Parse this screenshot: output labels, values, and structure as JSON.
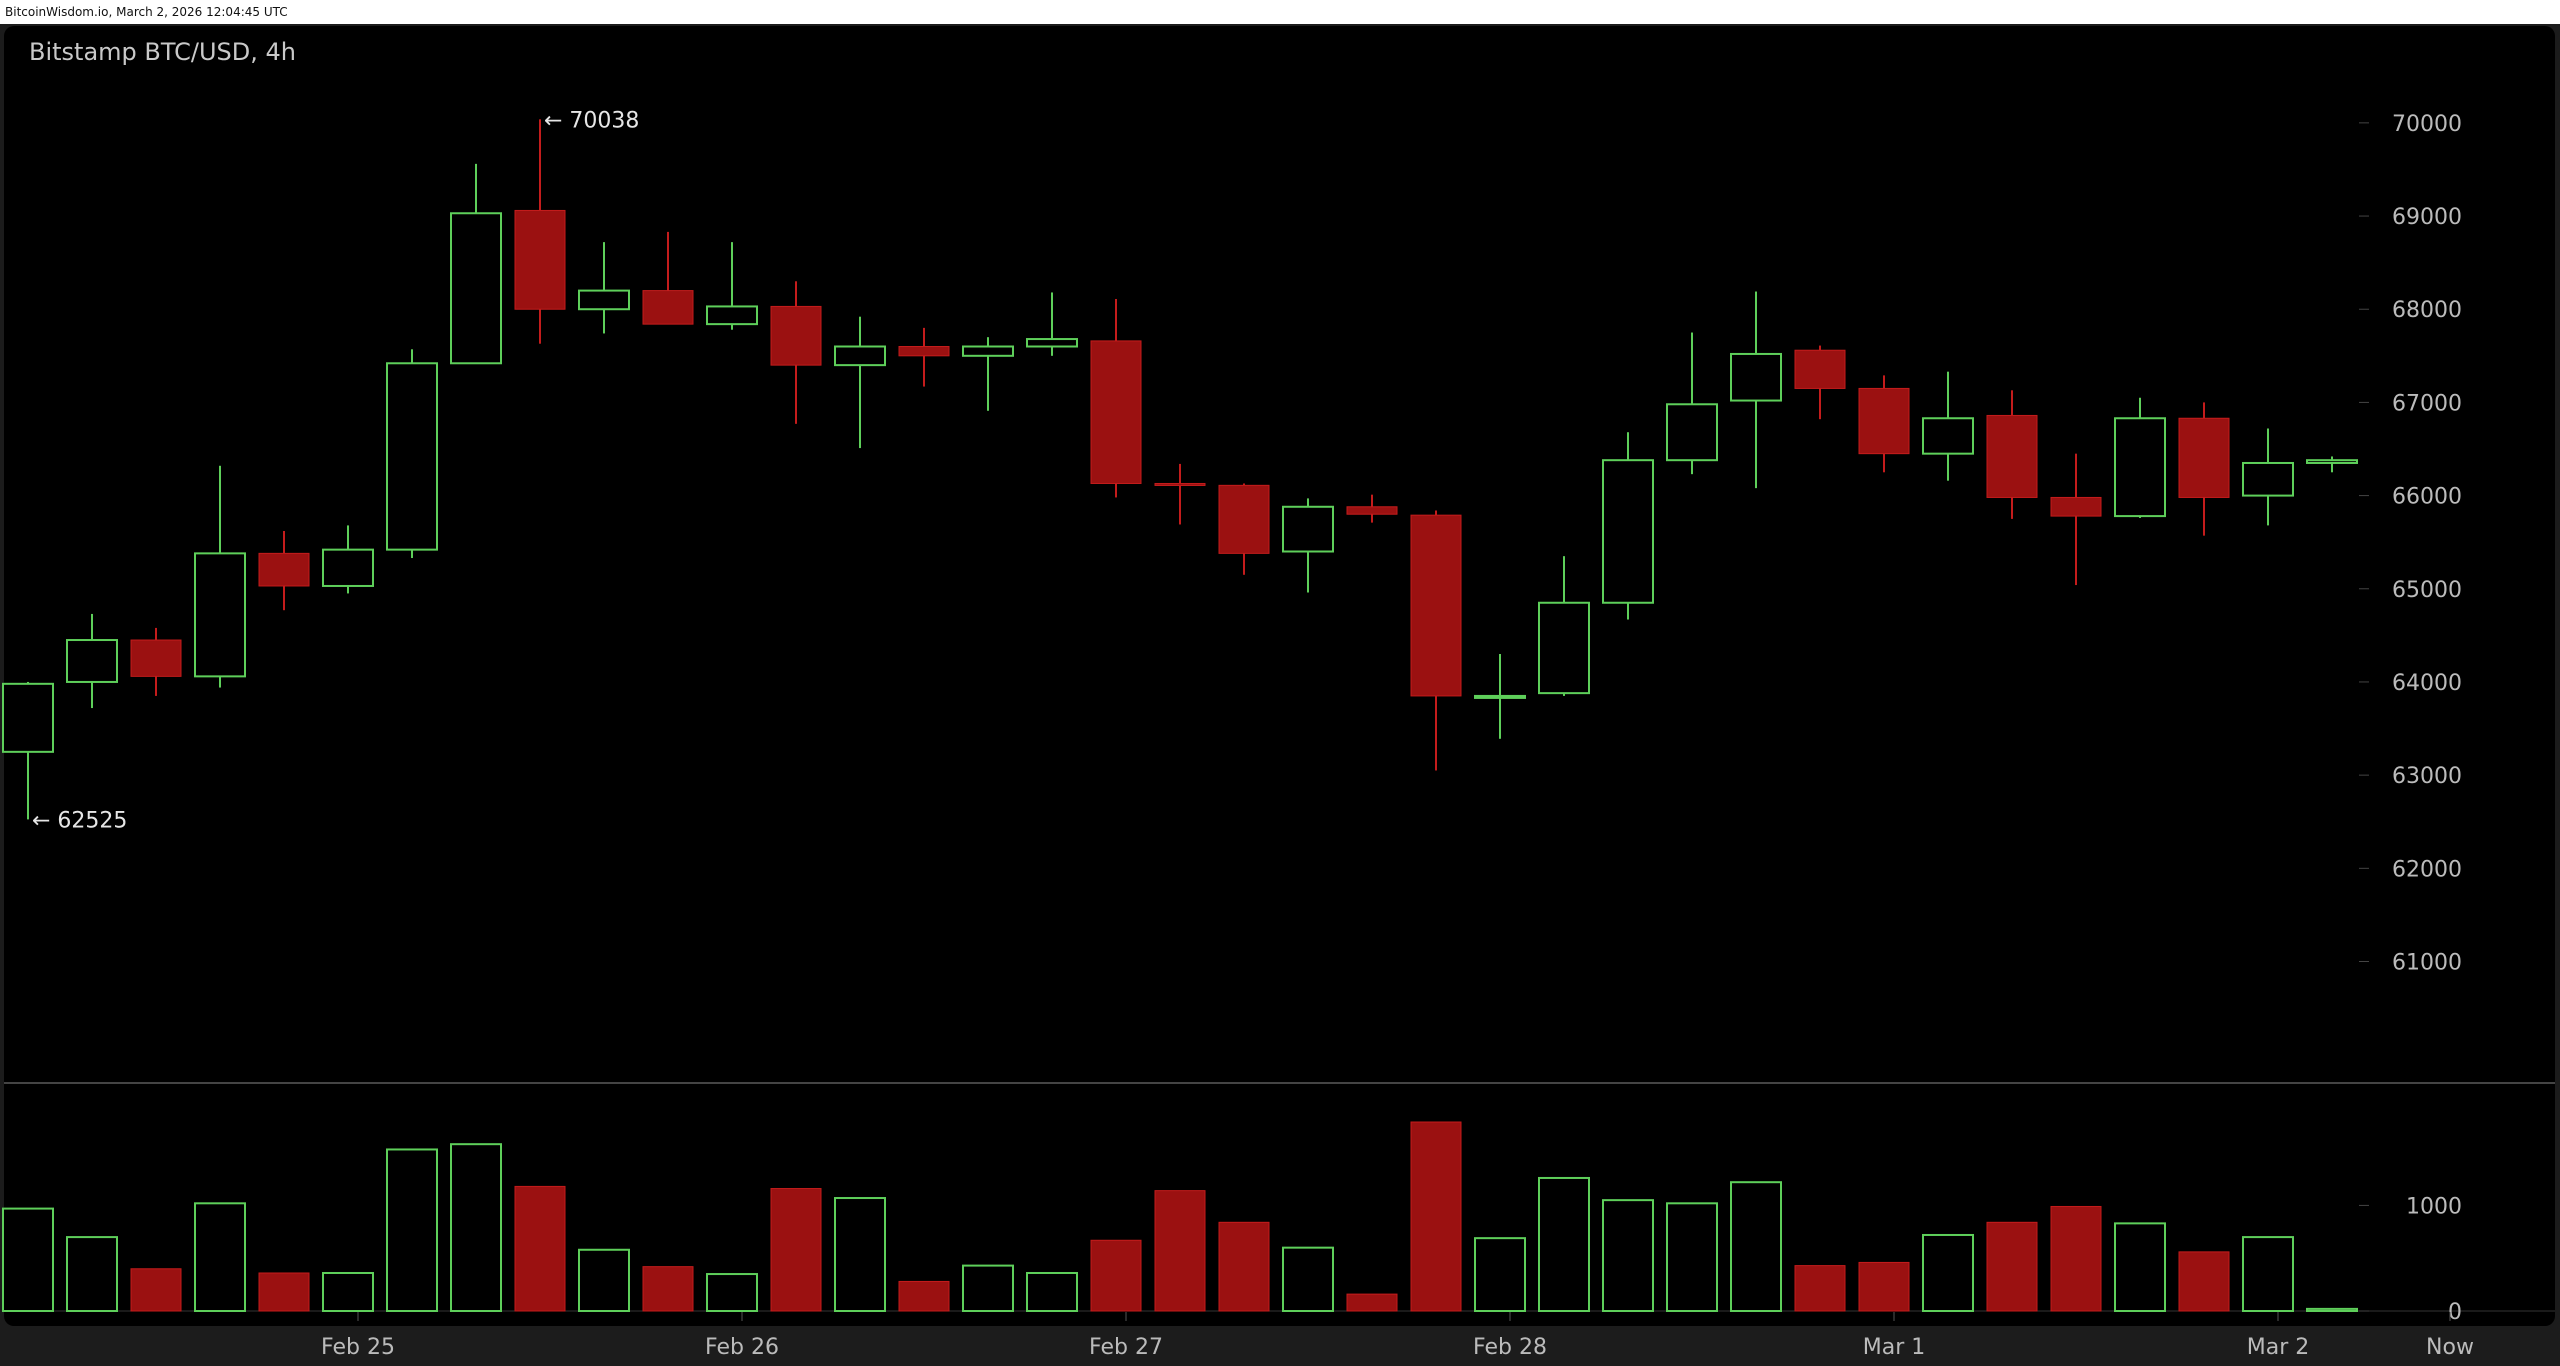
{
  "header": {
    "text": "BitcoinWisdom.io, March 2, 2026 12:04:45 UTC"
  },
  "chart": {
    "title": "Bitstamp BTC/USD, 4h"
  },
  "colors": {
    "up": "#5ecf5a",
    "down": "#9b1111",
    "down_outline": "#c41c1c",
    "background": "#000000",
    "frame": "#1c1c1c",
    "text": "#bbbbbb"
  },
  "chart_data": {
    "type": "candlestick",
    "title": "Bitstamp BTC/USD, 4h",
    "price_ylim": [
      59900,
      70900
    ],
    "volume_ylim": [
      0,
      2150
    ],
    "price_ticks": [
      61000,
      62000,
      63000,
      64000,
      65000,
      66000,
      67000,
      68000,
      69000,
      70000
    ],
    "volume_ticks": [
      0,
      1000
    ],
    "x_ticks": [
      {
        "label": "Feb 25",
        "at": 5
      },
      {
        "label": "Feb 26",
        "at": 11
      },
      {
        "label": "Feb 27",
        "at": 17
      },
      {
        "label": "Feb 28",
        "at": 23
      },
      {
        "label": "Mar 1",
        "at": 29
      },
      {
        "label": "Mar 2",
        "at": 35
      },
      {
        "label": "Now",
        "at": 38
      }
    ],
    "annotations": [
      {
        "text": "← 70038",
        "candle": 8,
        "price": 70038
      },
      {
        "text": "← 62525",
        "candle": 0,
        "price": 62525
      }
    ],
    "candles": [
      {
        "open": 63250,
        "high": 64000,
        "low": 62525,
        "close": 63980,
        "volume": 970
      },
      {
        "open": 64000,
        "high": 64730,
        "low": 63720,
        "close": 64450,
        "volume": 700
      },
      {
        "open": 64450,
        "high": 64580,
        "low": 63850,
        "close": 64060,
        "volume": 400
      },
      {
        "open": 64060,
        "high": 66320,
        "low": 63940,
        "close": 65380,
        "volume": 1020
      },
      {
        "open": 65380,
        "high": 65620,
        "low": 64770,
        "close": 65030,
        "volume": 360
      },
      {
        "open": 65030,
        "high": 65680,
        "low": 64950,
        "close": 65420,
        "volume": 360
      },
      {
        "open": 65420,
        "high": 67570,
        "low": 65330,
        "close": 67420,
        "volume": 1530
      },
      {
        "open": 67420,
        "high": 69560,
        "low": 67420,
        "close": 69030,
        "volume": 1580
      },
      {
        "open": 69060,
        "high": 70038,
        "low": 67630,
        "close": 68000,
        "volume": 1180
      },
      {
        "open": 68000,
        "high": 68720,
        "low": 67740,
        "close": 68200,
        "volume": 580
      },
      {
        "open": 68200,
        "high": 68830,
        "low": 67840,
        "close": 67840,
        "volume": 420
      },
      {
        "open": 67840,
        "high": 68720,
        "low": 67780,
        "close": 68030,
        "volume": 350
      },
      {
        "open": 68030,
        "high": 68300,
        "low": 66770,
        "close": 67400,
        "volume": 1160
      },
      {
        "open": 67400,
        "high": 67920,
        "low": 66510,
        "close": 67600,
        "volume": 1070
      },
      {
        "open": 67600,
        "high": 67800,
        "low": 67170,
        "close": 67500,
        "volume": 280
      },
      {
        "open": 67500,
        "high": 67700,
        "low": 66910,
        "close": 67600,
        "volume": 430
      },
      {
        "open": 67600,
        "high": 68180,
        "low": 67500,
        "close": 67680,
        "volume": 360
      },
      {
        "open": 67660,
        "high": 68110,
        "low": 65980,
        "close": 66130,
        "volume": 670
      },
      {
        "open": 66130,
        "high": 66340,
        "low": 65690,
        "close": 66110,
        "volume": 1140
      },
      {
        "open": 66110,
        "high": 66130,
        "low": 65150,
        "close": 65380,
        "volume": 840
      },
      {
        "open": 65400,
        "high": 65970,
        "low": 64960,
        "close": 65880,
        "volume": 600
      },
      {
        "open": 65880,
        "high": 66010,
        "low": 65710,
        "close": 65800,
        "volume": 160
      },
      {
        "open": 65790,
        "high": 65840,
        "low": 63050,
        "close": 63850,
        "volume": 1790
      },
      {
        "open": 63830,
        "high": 64300,
        "low": 63390,
        "close": 63850,
        "volume": 690
      },
      {
        "open": 63880,
        "high": 65350,
        "low": 63850,
        "close": 64850,
        "volume": 1260
      },
      {
        "open": 64850,
        "high": 66680,
        "low": 64670,
        "close": 66380,
        "volume": 1050
      },
      {
        "open": 66380,
        "high": 67750,
        "low": 66230,
        "close": 66980,
        "volume": 1020
      },
      {
        "open": 67020,
        "high": 68190,
        "low": 66080,
        "close": 67520,
        "volume": 1220
      },
      {
        "open": 67560,
        "high": 67610,
        "low": 66820,
        "close": 67150,
        "volume": 430
      },
      {
        "open": 67150,
        "high": 67290,
        "low": 66250,
        "close": 66450,
        "volume": 460
      },
      {
        "open": 66450,
        "high": 67330,
        "low": 66160,
        "close": 66830,
        "volume": 720
      },
      {
        "open": 66860,
        "high": 67130,
        "low": 65750,
        "close": 65980,
        "volume": 840
      },
      {
        "open": 65980,
        "high": 66450,
        "low": 65040,
        "close": 65780,
        "volume": 990
      },
      {
        "open": 65780,
        "high": 67050,
        "low": 65760,
        "close": 66830,
        "volume": 830
      },
      {
        "open": 66830,
        "high": 67000,
        "low": 65570,
        "close": 65980,
        "volume": 560
      },
      {
        "open": 66000,
        "high": 66720,
        "low": 65680,
        "close": 66350,
        "volume": 700
      },
      {
        "open": 66350,
        "high": 66420,
        "low": 66250,
        "close": 66380,
        "volume": 20
      }
    ]
  }
}
